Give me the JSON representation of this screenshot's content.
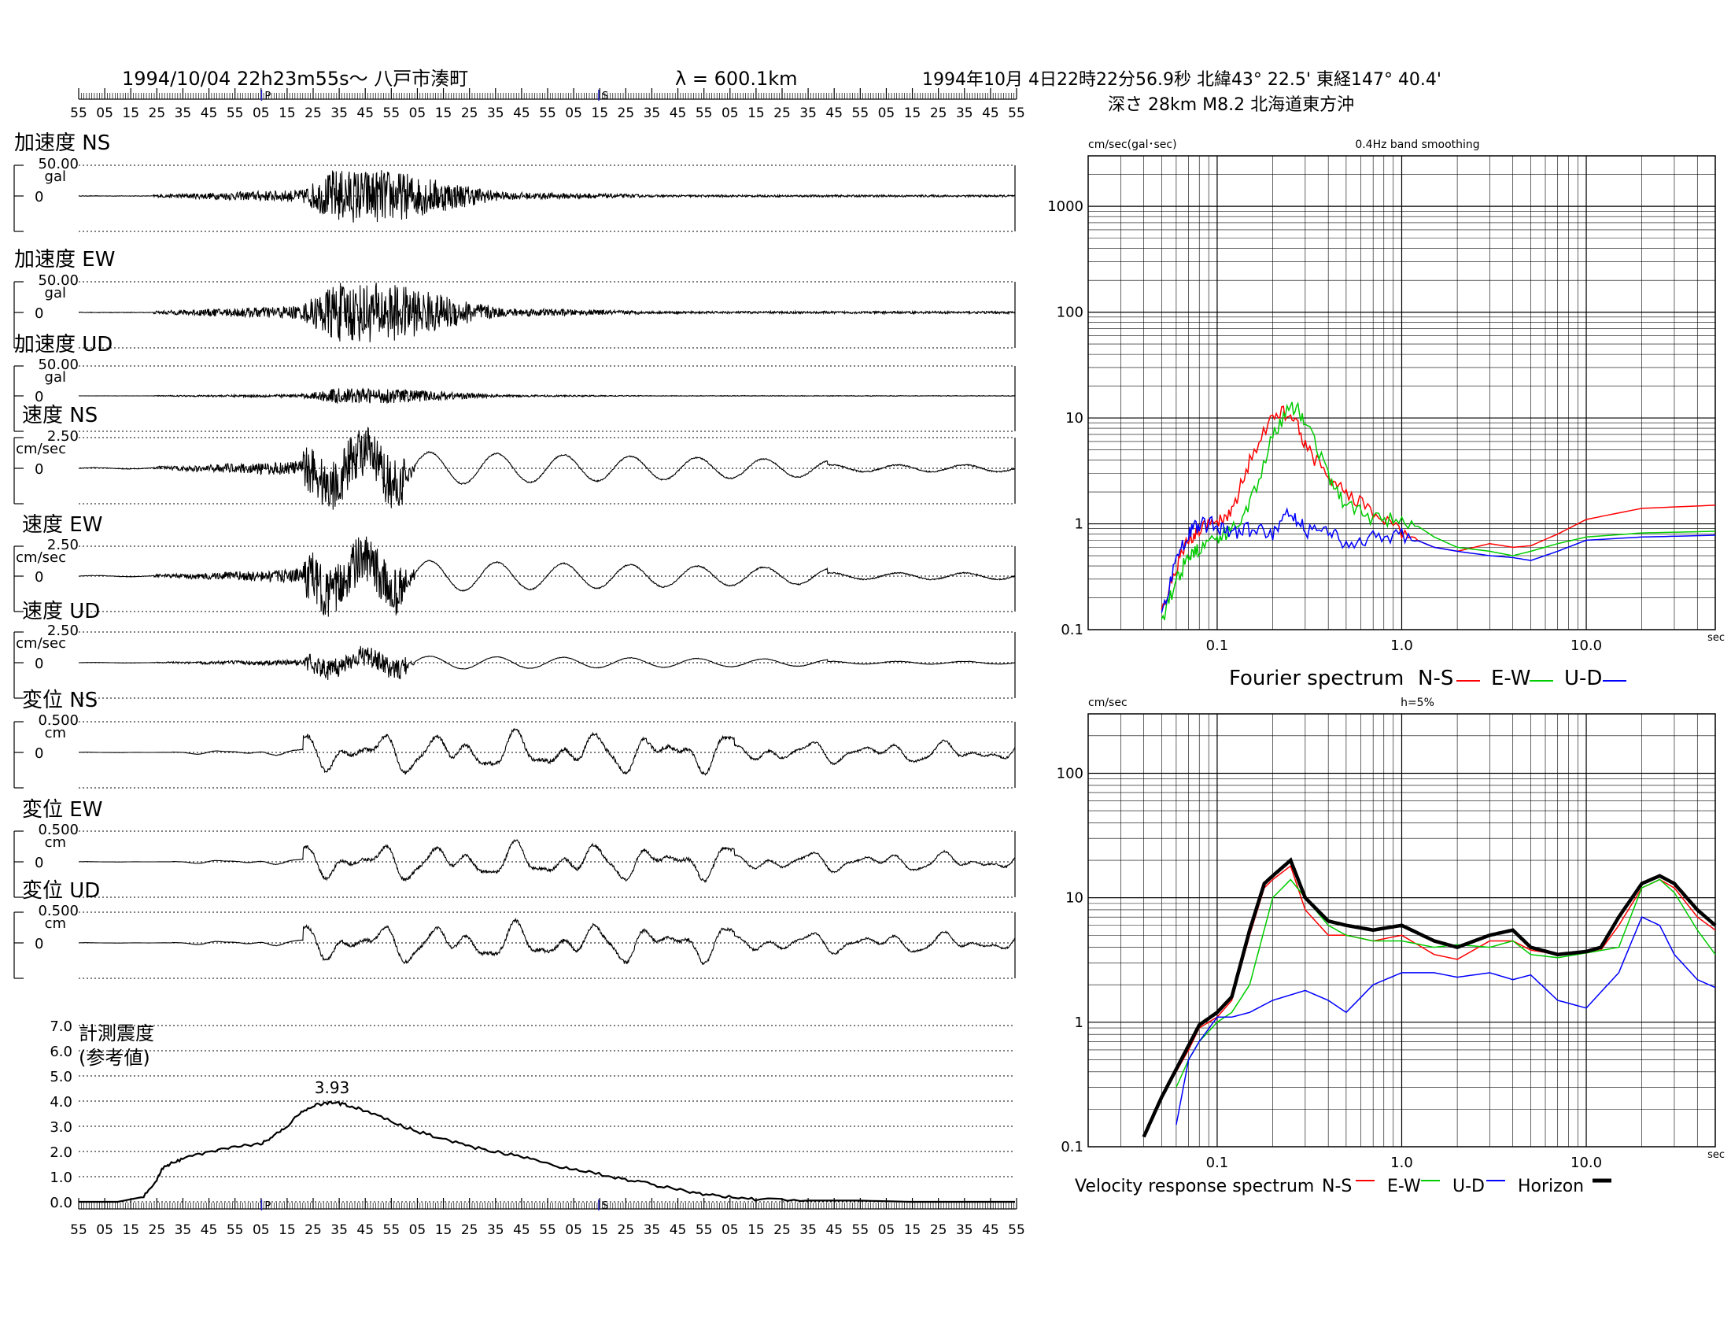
{
  "header": {
    "record": "1994/10/04 22h23m55s〜 八戸市湊町",
    "wavelength": "λ = 600.1km",
    "event_line1": "1994年10月 4日22時22分56.9秒 北緯43° 22.5' 東経147° 40.4'",
    "event_line2": "深さ 28km M8.2 北海道東方沖"
  },
  "time_ruler": {
    "labels": [
      "55",
      "05",
      "15",
      "25",
      "35",
      "45",
      "55",
      "05",
      "15",
      "25",
      "35",
      "45",
      "55",
      "05",
      "15",
      "25",
      "35",
      "45",
      "55",
      "05",
      "15",
      "25",
      "35",
      "45",
      "55",
      "05",
      "15",
      "25",
      "35",
      "45",
      "55",
      "05",
      "15",
      "25",
      "35",
      "45",
      "55"
    ],
    "p_marker": "P",
    "s_marker": "S"
  },
  "waveform_panels": [
    {
      "title": "加速度 NS",
      "scale": "50.00",
      "unit": "gal",
      "zero": "0"
    },
    {
      "title": "加速度 EW",
      "scale": "50.00",
      "unit": "gal",
      "zero": "0"
    },
    {
      "title": "加速度 UD",
      "scale": "50.00",
      "unit": "gal",
      "zero": "0"
    },
    {
      "title": "速度 NS",
      "scale": "2.50",
      "unit": "cm/sec",
      "zero": "0"
    },
    {
      "title": "速度 EW",
      "scale": "2.50",
      "unit": "cm/sec",
      "zero": "0"
    },
    {
      "title": "速度 UD",
      "scale": "2.50",
      "unit": "cm/sec",
      "zero": "0"
    },
    {
      "title": "変位 NS",
      "scale": "0.500",
      "unit": "cm",
      "zero": "0"
    },
    {
      "title": "変位 EW",
      "scale": "0.500",
      "unit": "cm",
      "zero": "0"
    },
    {
      "title": "変位 UD",
      "scale": "0.500",
      "unit": "cm",
      "zero": "0"
    }
  ],
  "intensity": {
    "title_line1": "計測震度",
    "title_line2": "(参考値)",
    "y_ticks": [
      "7.0",
      "6.0",
      "5.0",
      "4.0",
      "3.0",
      "2.0",
      "1.0",
      "0.0"
    ],
    "peak_label": "3.93"
  },
  "fourier": {
    "ylabel": "cm/sec(gal･sec)",
    "note": "0.4Hz band smoothing",
    "y_ticks": [
      "1000",
      "100",
      "10",
      "1",
      "0.1"
    ],
    "x_ticks": [
      "0.1",
      "1.0",
      "10.0"
    ],
    "x_unit": "sec",
    "caption": "Fourier spectrum",
    "legend": [
      {
        "name": "N-S",
        "color": "#ff0000"
      },
      {
        "name": "E-W",
        "color": "#00cc00"
      },
      {
        "name": "U-D",
        "color": "#0000ff"
      }
    ]
  },
  "response": {
    "ylabel": "cm/sec",
    "note": "h=5%",
    "y_ticks": [
      "100",
      "10",
      "1",
      "0.1"
    ],
    "x_ticks": [
      "0.1",
      "1.0",
      "10.0"
    ],
    "x_unit": "sec",
    "caption": "Velocity response spectrum",
    "legend": [
      {
        "name": "N-S",
        "color": "#ff0000"
      },
      {
        "name": "E-W",
        "color": "#00cc00"
      },
      {
        "name": "U-D",
        "color": "#0000ff"
      },
      {
        "name": "Horizon",
        "color": "#000000"
      }
    ]
  },
  "chart_data": [
    {
      "type": "line",
      "title": "計測震度 (参考値)",
      "ylim": [
        0,
        7
      ],
      "x": [
        0,
        15,
        25,
        30,
        32,
        35,
        40,
        50,
        60,
        70,
        75,
        80,
        85,
        90,
        95,
        100,
        105,
        110,
        120,
        130,
        140,
        150,
        160,
        170,
        180,
        190,
        200,
        210,
        220,
        230,
        240,
        250,
        260,
        280,
        300,
        320,
        340,
        360
      ],
      "values": [
        0,
        0,
        0.2,
        0.9,
        1.3,
        1.5,
        1.7,
        2.0,
        2.2,
        2.3,
        2.6,
        3.0,
        3.5,
        3.8,
        3.93,
        3.9,
        3.8,
        3.6,
        3.2,
        2.8,
        2.5,
        2.2,
        2.0,
        1.8,
        1.5,
        1.3,
        1.1,
        0.9,
        0.7,
        0.5,
        0.3,
        0.2,
        0.1,
        0.05,
        0.05,
        0,
        0,
        0
      ]
    },
    {
      "type": "line",
      "title": "Fourier spectrum",
      "x_scale": "log",
      "y_scale": "log",
      "xlim": [
        0.02,
        50
      ],
      "ylim": [
        0.1,
        3000
      ],
      "series": [
        {
          "name": "N-S",
          "x": [
            0.05,
            0.06,
            0.07,
            0.08,
            0.1,
            0.12,
            0.15,
            0.2,
            0.25,
            0.3,
            0.4,
            0.5,
            0.7,
            1.0,
            1.5,
            2,
            3,
            4,
            5,
            7,
            10,
            20,
            50
          ],
          "values": [
            0.15,
            0.4,
            0.7,
            0.9,
            1.0,
            1.3,
            4,
            10,
            12,
            6,
            2.5,
            2.0,
            1.3,
            0.8,
            0.6,
            0.55,
            0.65,
            0.6,
            0.62,
            0.8,
            1.1,
            1.4,
            1.5
          ]
        },
        {
          "name": "E-W",
          "x": [
            0.05,
            0.06,
            0.07,
            0.08,
            0.1,
            0.12,
            0.15,
            0.2,
            0.25,
            0.3,
            0.4,
            0.5,
            0.7,
            1.0,
            1.5,
            2,
            3,
            4,
            5,
            7,
            10,
            20,
            50
          ],
          "values": [
            0.12,
            0.3,
            0.5,
            0.6,
            0.7,
            0.9,
            1.5,
            7,
            14,
            10,
            3,
            1.5,
            1.1,
            1.2,
            0.75,
            0.6,
            0.55,
            0.5,
            0.55,
            0.65,
            0.75,
            0.82,
            0.85
          ]
        },
        {
          "name": "U-D",
          "x": [
            0.05,
            0.06,
            0.07,
            0.08,
            0.1,
            0.12,
            0.15,
            0.2,
            0.25,
            0.3,
            0.4,
            0.5,
            0.7,
            1.0,
            1.5,
            2,
            3,
            4,
            5,
            7,
            10,
            20,
            50
          ],
          "values": [
            0.13,
            0.5,
            0.8,
            1.0,
            1.0,
            0.8,
            0.9,
            0.8,
            1.3,
            0.9,
            0.8,
            0.7,
            0.75,
            0.8,
            0.6,
            0.55,
            0.5,
            0.48,
            0.45,
            0.55,
            0.7,
            0.75,
            0.78
          ]
        }
      ]
    },
    {
      "type": "line",
      "title": "Velocity response spectrum",
      "x_scale": "log",
      "y_scale": "log",
      "xlim": [
        0.02,
        50
      ],
      "ylim": [
        0.1,
        300
      ],
      "series": [
        {
          "name": "N-S",
          "x": [
            0.04,
            0.05,
            0.06,
            0.07,
            0.08,
            0.1,
            0.12,
            0.15,
            0.18,
            0.2,
            0.25,
            0.3,
            0.4,
            0.5,
            0.7,
            1.0,
            1.5,
            2,
            3,
            4,
            5,
            7,
            10,
            12,
            15,
            20,
            25,
            30,
            40,
            50
          ],
          "values": [
            0.12,
            0.25,
            0.4,
            0.6,
            0.9,
            1.1,
            1.5,
            5,
            12,
            14,
            18,
            8,
            5,
            5,
            4.5,
            5,
            3.5,
            3.2,
            4.5,
            4.5,
            3.8,
            3.5,
            3.6,
            3.8,
            6,
            12,
            14,
            12,
            7,
            5.5
          ]
        },
        {
          "name": "E-W",
          "x": [
            0.06,
            0.07,
            0.08,
            0.1,
            0.12,
            0.15,
            0.2,
            0.25,
            0.3,
            0.4,
            0.5,
            0.7,
            1.0,
            1.5,
            2,
            3,
            4,
            5,
            7,
            10,
            15,
            20,
            25,
            30,
            40,
            50
          ],
          "values": [
            0.3,
            0.5,
            0.7,
            1.0,
            1.2,
            2,
            10,
            14,
            10,
            6,
            5,
            4.5,
            4.5,
            4,
            4.2,
            4,
            4.5,
            3.5,
            3.3,
            3.6,
            4,
            12,
            14,
            11,
            5.5,
            3.5
          ]
        },
        {
          "name": "U-D",
          "x": [
            0.06,
            0.07,
            0.08,
            0.1,
            0.12,
            0.15,
            0.2,
            0.3,
            0.4,
            0.5,
            0.7,
            1.0,
            1.5,
            2,
            3,
            4,
            5,
            7,
            10,
            15,
            20,
            25,
            30,
            40,
            50
          ],
          "values": [
            0.15,
            0.5,
            0.7,
            1.1,
            1.1,
            1.2,
            1.5,
            1.8,
            1.5,
            1.2,
            2,
            2.5,
            2.5,
            2.3,
            2.5,
            2.2,
            2.4,
            1.5,
            1.3,
            2.5,
            7,
            6,
            3.5,
            2.2,
            1.9
          ]
        },
        {
          "name": "Horizon",
          "x": [
            0.04,
            0.05,
            0.06,
            0.07,
            0.08,
            0.1,
            0.12,
            0.15,
            0.18,
            0.2,
            0.25,
            0.3,
            0.4,
            0.5,
            0.7,
            1.0,
            1.5,
            2,
            3,
            4,
            5,
            7,
            10,
            12,
            15,
            20,
            25,
            30,
            40,
            50
          ],
          "values": [
            0.12,
            0.25,
            0.42,
            0.65,
            0.95,
            1.2,
            1.6,
            5.5,
            13,
            15,
            20,
            10,
            6.5,
            6,
            5.5,
            6,
            4.5,
            4,
            5,
            5.5,
            4,
            3.5,
            3.7,
            4,
            7,
            13,
            15,
            13,
            8,
            6
          ]
        }
      ]
    }
  ]
}
